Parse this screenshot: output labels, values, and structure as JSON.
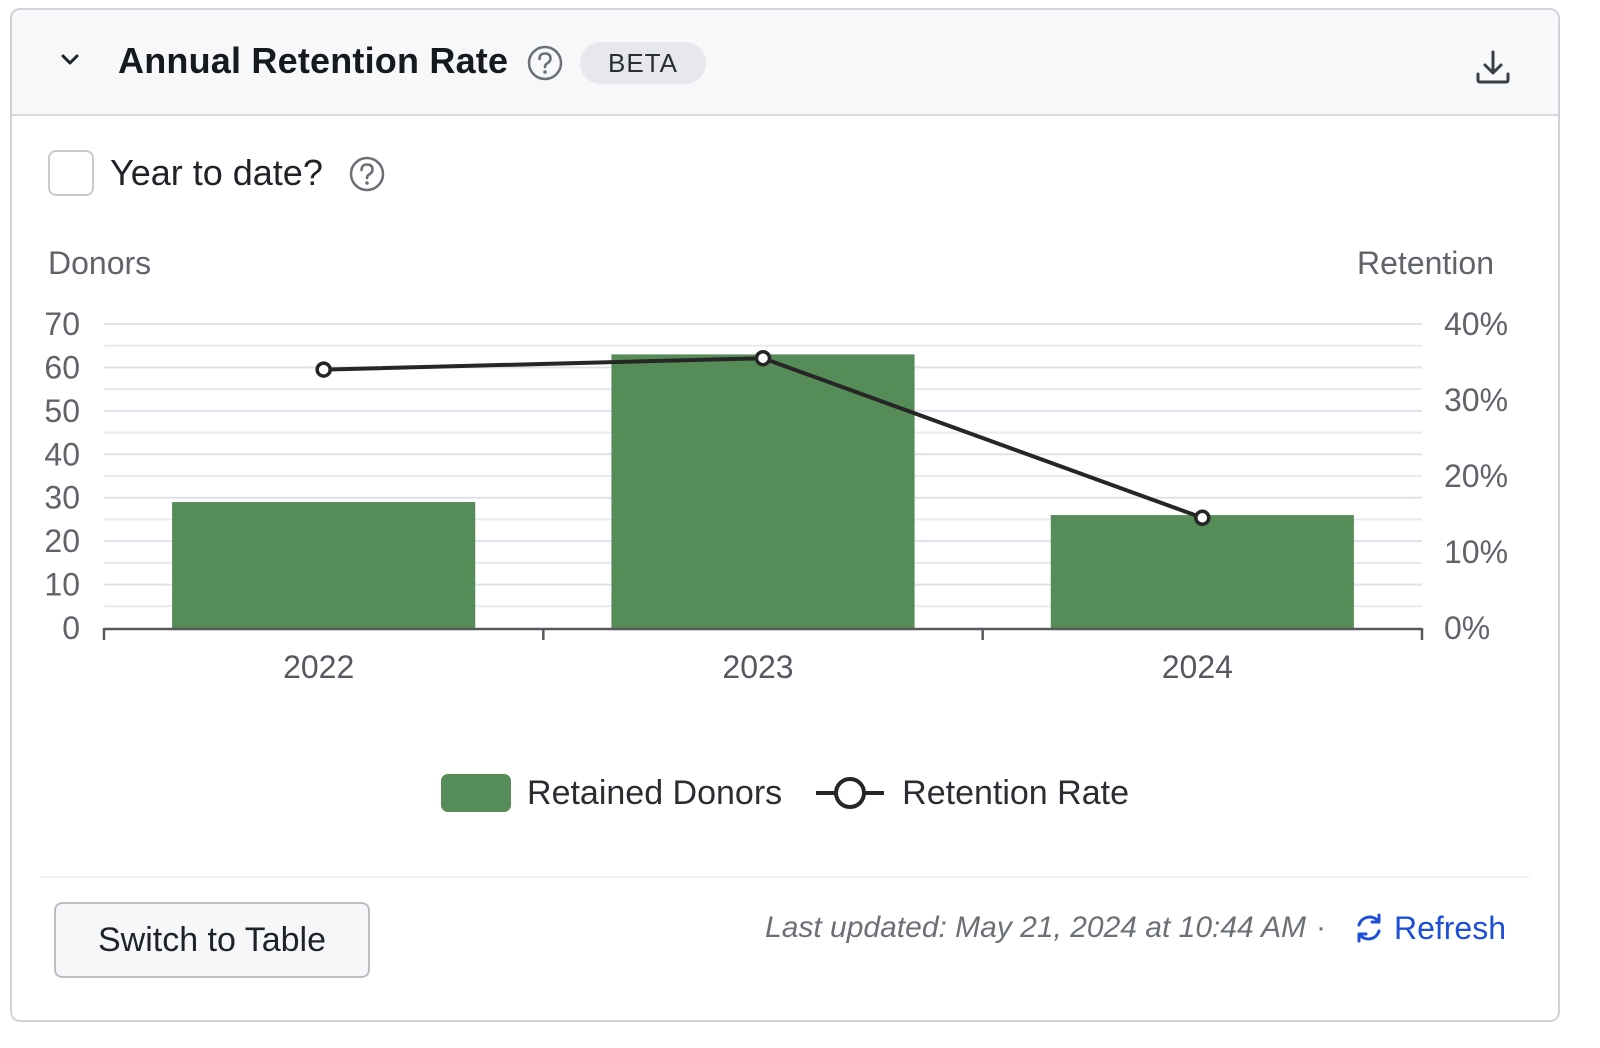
{
  "header": {
    "title": "Annual Retention Rate",
    "badge": "BETA",
    "icons": {
      "collapse": "chevron-down-icon",
      "help": "question-circle-icon",
      "download": "download-icon"
    }
  },
  "controls": {
    "ytd_label": "Year to date?",
    "ytd_checked": false
  },
  "chart_data": {
    "type": "bar",
    "categories": [
      "2022",
      "2023",
      "2024"
    ],
    "series": [
      {
        "name": "Retained Donors",
        "type": "bar",
        "axis": "left",
        "values": [
          29,
          63,
          26
        ],
        "color": "#568c57"
      },
      {
        "name": "Retention Rate",
        "type": "line",
        "axis": "right",
        "values": [
          34,
          35.5,
          14.5
        ],
        "color": "#262626"
      }
    ],
    "ylabel": "Donors",
    "y2label": "Retention",
    "ylim": [
      0,
      70
    ],
    "y2lim": [
      0,
      40
    ],
    "yticks": [
      "0",
      "10",
      "20",
      "30",
      "40",
      "50",
      "60",
      "70"
    ],
    "y2ticks": [
      "0%",
      "10%",
      "20%",
      "30%",
      "40%"
    ],
    "grid": true,
    "legend_position": "bottom"
  },
  "footer": {
    "switch_label": "Switch to Table",
    "last_updated": "Last updated: May 21, 2024 at 10:44 AM",
    "separator": "·",
    "refresh_label": "Refresh",
    "refresh_color": "#1d4fd8"
  }
}
